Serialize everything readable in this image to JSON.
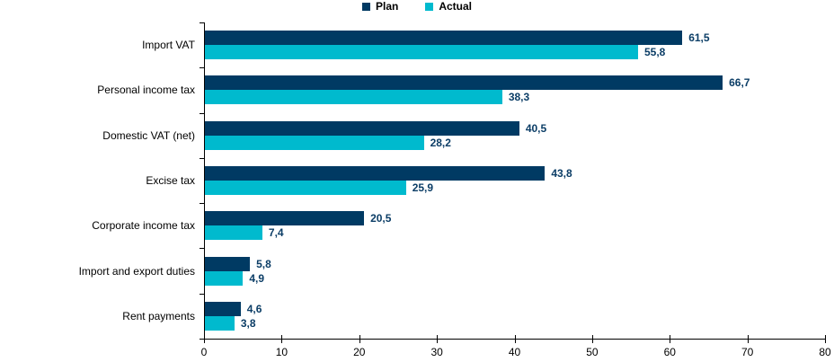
{
  "chart_data": {
    "type": "bar",
    "orientation": "horizontal",
    "title": "",
    "categories": [
      "Import VAT",
      "Personal income tax",
      "Domestic VAT (net)",
      "Excise tax",
      "Corporate income tax",
      "Import and export duties",
      "Rent payments"
    ],
    "series": [
      {
        "name": "Plan",
        "color": "#003A63",
        "values": [
          61.5,
          66.7,
          40.5,
          43.8,
          20.5,
          5.8,
          4.6
        ],
        "labels": [
          "61,5",
          "66,7",
          "40,5",
          "43,8",
          "20,5",
          "5,8",
          "4,6"
        ]
      },
      {
        "name": "Actual",
        "color": "#00BACE",
        "values": [
          55.8,
          38.3,
          28.2,
          25.9,
          7.4,
          4.9,
          3.8
        ],
        "labels": [
          "55,8",
          "38,3",
          "28,2",
          "25,9",
          "7,4",
          "4,9",
          "3,8"
        ]
      }
    ],
    "xlim": [
      0,
      80
    ],
    "x_ticks": [
      "0",
      "10",
      "20",
      "30",
      "40",
      "50",
      "60",
      "70",
      "80"
    ],
    "xlabel": "",
    "ylabel": "",
    "legend_position": "top-center",
    "grid": false,
    "value_label_color": "#0B3D66",
    "axis_color": "#000000"
  }
}
